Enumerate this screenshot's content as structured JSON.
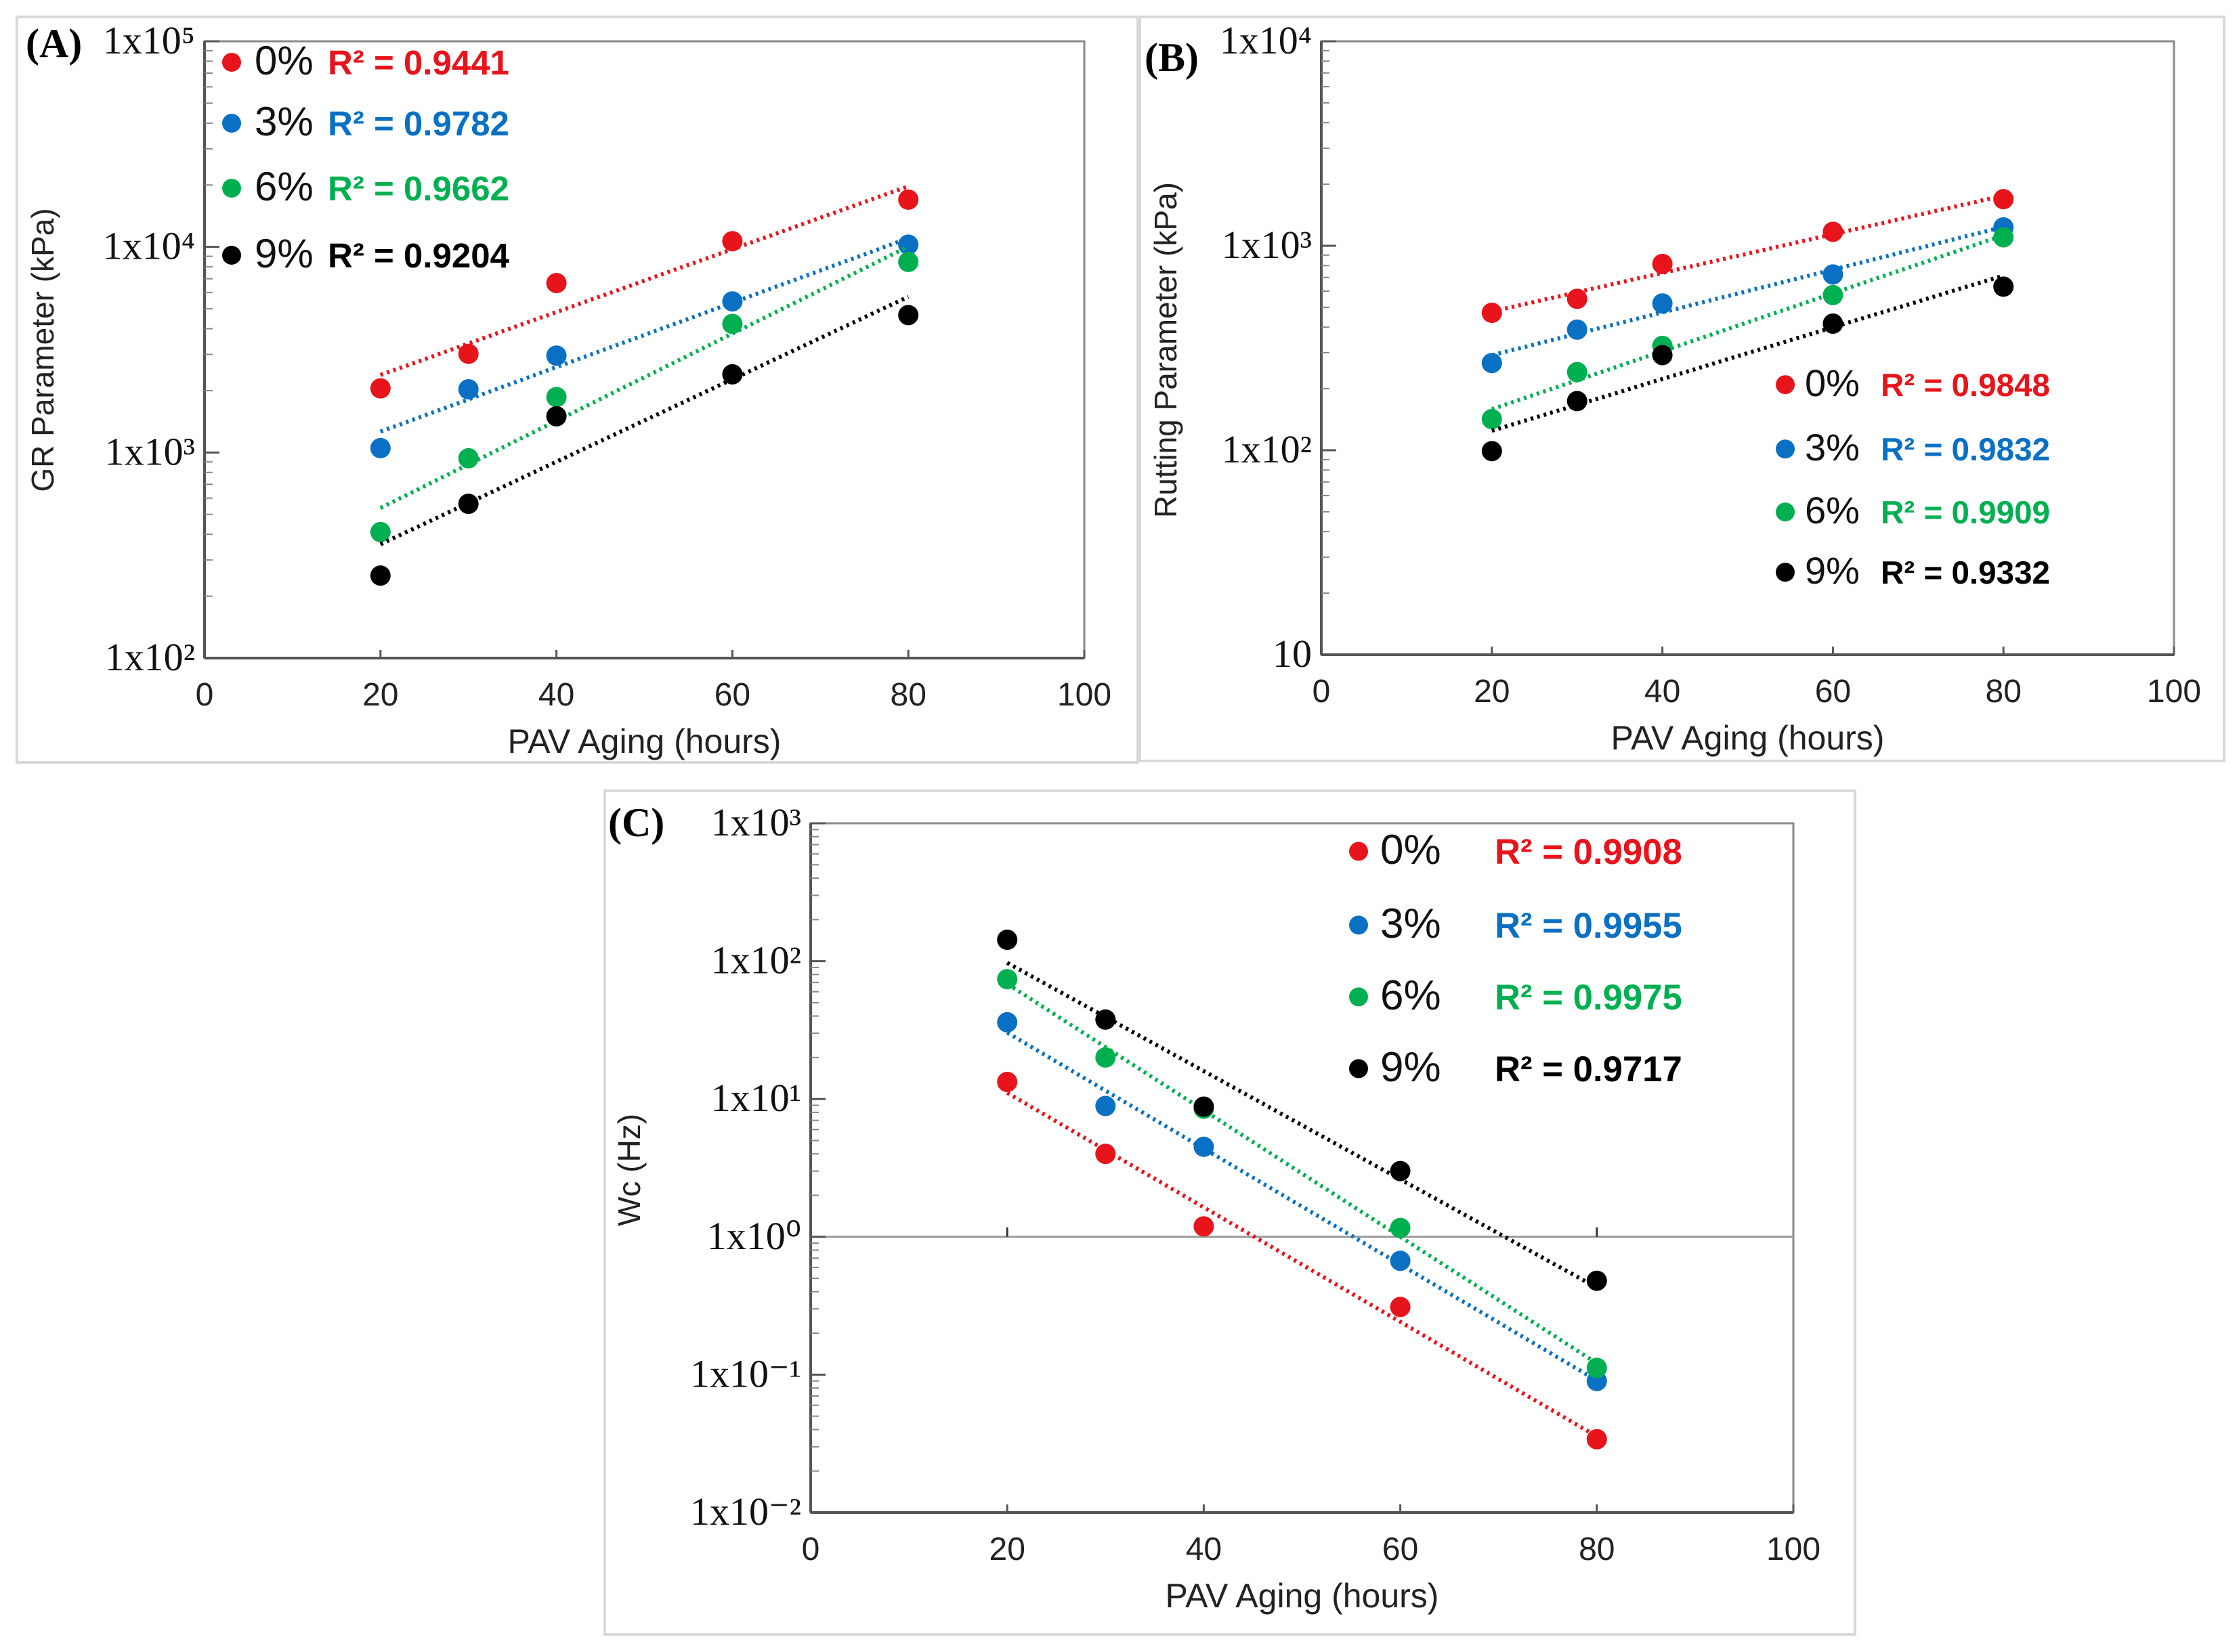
{
  "chart_data": [
    {
      "type": "scatter",
      "panel_label": "(A)",
      "ylabel": "GR Parameter (kPa)",
      "xlabel": "PAV Aging (hours)",
      "yscale": "log",
      "xlim": [
        0,
        100
      ],
      "ylim": [
        100,
        100000
      ],
      "xticks": [
        0,
        20,
        40,
        60,
        80,
        100
      ],
      "xtick_labels": [
        "0",
        "20",
        "40",
        "60",
        "80",
        "100"
      ],
      "yticks": [
        100,
        1000,
        10000,
        100000
      ],
      "ytick_labels": [
        "1x10²",
        "1x10³",
        "1x10⁴",
        "1x10⁵"
      ],
      "legend_position": "top-left",
      "trendline": "exponential (dotted)",
      "x": [
        20,
        30,
        40,
        60,
        80
      ],
      "series": [
        {
          "name": "0%",
          "r2": "R² = 0.9441",
          "color": "#e8141b",
          "values": [
            2050,
            3020,
            6670,
            10660,
            16980
          ]
        },
        {
          "name": "3%",
          "r2": "R² = 0.9782",
          "color": "#0a70c4",
          "values": [
            1050,
            2030,
            2960,
            5430,
            10250
          ]
        },
        {
          "name": "6%",
          "r2": "R² = 0.9662",
          "color": "#00b050",
          "values": [
            410,
            937,
            1860,
            4220,
            8450
          ]
        },
        {
          "name": "9%",
          "r2": "R² = 0.9204",
          "color": "#000000",
          "values": [
            252,
            563,
            1500,
            2400,
            4660
          ]
        }
      ]
    },
    {
      "type": "scatter",
      "panel_label": "(B)",
      "ylabel": "Rutting Parameter (kPa)",
      "xlabel": "PAV Aging (hours)",
      "yscale": "log",
      "xlim": [
        0,
        100
      ],
      "ylim": [
        10,
        10000
      ],
      "xticks": [
        0,
        20,
        40,
        60,
        80,
        100
      ],
      "xtick_labels": [
        "0",
        "20",
        "40",
        "60",
        "80",
        "100"
      ],
      "yticks": [
        10,
        100,
        1000,
        10000
      ],
      "ytick_labels": [
        "10",
        "1x10²",
        "1x10³",
        "1x10⁴"
      ],
      "legend_position": "lower-right",
      "trendline": "exponential (dotted)",
      "x": [
        20,
        30,
        40,
        60,
        80
      ],
      "series": [
        {
          "name": "0%",
          "r2": "R² = 0.9848",
          "color": "#e8141b",
          "values": [
            470,
            550,
            815,
            1170,
            1690
          ]
        },
        {
          "name": "3%",
          "r2": "R² = 0.9832",
          "color": "#0a70c4",
          "values": [
            267,
            389,
            522,
            724,
            1230
          ]
        },
        {
          "name": "6%",
          "r2": "R² = 0.9909",
          "color": "#00b050",
          "values": [
            142,
            241,
            324,
            574,
            1100
          ]
        },
        {
          "name": "9%",
          "r2": "R² = 0.9332",
          "color": "#000000",
          "values": [
            99,
            174,
            292,
            416,
            631
          ]
        }
      ]
    },
    {
      "type": "scatter",
      "panel_label": "(C)",
      "ylabel": "Wc (Hz)",
      "xlabel": "PAV Aging (hours)",
      "yscale": "log",
      "xlim": [
        0,
        100
      ],
      "ylim": [
        0.01,
        1000
      ],
      "xticks": [
        0,
        20,
        40,
        60,
        80,
        100
      ],
      "xtick_labels": [
        "0",
        "20",
        "40",
        "60",
        "80",
        "100"
      ],
      "yticks": [
        0.01,
        0.1,
        1,
        10,
        100,
        1000
      ],
      "ytick_labels": [
        "1x10⁻²",
        "1x10⁻¹",
        "1x10⁰",
        "1x10¹",
        "1x10²",
        "1x10³"
      ],
      "legend_position": "top-right",
      "trendline": "exponential (dotted)",
      "x": [
        20,
        30,
        40,
        60,
        80
      ],
      "series": [
        {
          "name": "0%",
          "r2": "R² = 0.9908",
          "color": "#e8141b",
          "values": [
            13.3,
            4.0,
            1.19,
            0.31,
            0.034
          ]
        },
        {
          "name": "3%",
          "r2": "R² = 0.9955",
          "color": "#0a70c4",
          "values": [
            36,
            8.9,
            4.5,
            0.67,
            0.09
          ]
        },
        {
          "name": "6%",
          "r2": "R² = 0.9975",
          "color": "#00b050",
          "values": [
            74,
            20,
            8.5,
            1.16,
            0.112
          ]
        },
        {
          "name": "9%",
          "r2": "R² = 0.9717",
          "color": "#000000",
          "values": [
            143,
            37.7,
            8.8,
            3.0,
            0.48
          ]
        }
      ]
    }
  ]
}
